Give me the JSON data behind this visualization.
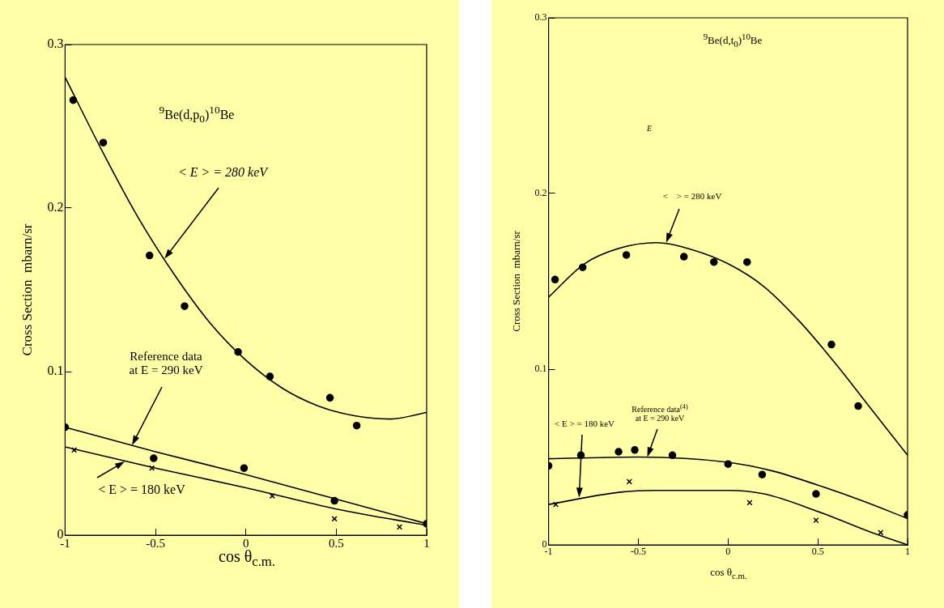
{
  "chart_data": [
    {
      "type": "scatter",
      "xlabel": "cos θ$_{c.m.}$",
      "ylabel": "Cross Section  mbarn/sr",
      "xlim": [
        -1,
        1
      ],
      "ylim": [
        0,
        0.3
      ],
      "xticks": [
        -1,
        -0.5,
        0,
        0.5,
        1
      ],
      "yticks": [
        0,
        0.1,
        0.2,
        0.3
      ],
      "grid": false,
      "legend": false,
      "annotations": [
        "$^{9}$Be(d,p$_{0}$)$^{10}$Be",
        {
          "text": "< E > = 280 keV",
          "x": -0.45,
          "y": 0.169
        },
        {
          "text": "Reference data\nat E = 290 keV",
          "x": -0.63,
          "y": 0.055
        },
        {
          "text": "< E > = 180 keV",
          "x": -0.67,
          "y": 0.045
        }
      ],
      "series": [
        {
          "type": "scatter",
          "marker": "circle",
          "color": "#000000",
          "x": [
            -0.955,
            -0.789,
            -0.533,
            -0.339,
            -0.043,
            0.133,
            0.465,
            0.613
          ],
          "values": [
            0.266,
            0.24,
            0.171,
            0.14,
            0.112,
            0.097,
            0.084,
            0.067
          ]
        },
        {
          "type": "line",
          "color": "#000000",
          "x": [
            -1,
            -0.8,
            -0.6,
            -0.4,
            -0.2,
            0,
            0.2,
            0.4,
            0.6,
            0.8,
            1
          ],
          "values": [
            0.28,
            0.236,
            0.195,
            0.16,
            0.13,
            0.107,
            0.09,
            0.079,
            0.073,
            0.071,
            0.075
          ]
        },
        {
          "type": "scatter",
          "marker": "circle",
          "color": "#000000",
          "x": [
            -1,
            -0.51,
            -0.01,
            0.49,
            1
          ],
          "values": [
            0.066,
            0.047,
            0.041,
            0.021,
            0.007
          ]
        },
        {
          "type": "line",
          "color": "#000000",
          "x": [
            -1,
            -0.5,
            0,
            0.5,
            1
          ],
          "values": [
            0.066,
            0.051,
            0.037,
            0.022,
            0.007
          ]
        },
        {
          "type": "scatter",
          "marker": "cross",
          "color": "#000000",
          "x": [
            -0.95,
            -0.52,
            0.146,
            0.49,
            0.85
          ],
          "values": [
            0.052,
            0.041,
            0.024,
            0.01,
            0.005
          ]
        },
        {
          "type": "line",
          "color": "#000000",
          "x": [
            -1,
            -0.5,
            0,
            0.5,
            1
          ],
          "values": [
            0.054,
            0.041,
            0.029,
            0.016,
            0.006
          ]
        }
      ]
    },
    {
      "type": "scatter",
      "xlabel": "cos θ$_{c.m.}$",
      "ylabel": "Cross Section  mbarn/sr",
      "xlim": [
        -1,
        1
      ],
      "ylim": [
        0,
        0.3
      ],
      "xticks": [
        -1,
        -0.5,
        0,
        0.5,
        1
      ],
      "yticks": [
        0,
        0.1,
        0.2,
        0.3
      ],
      "grid": false,
      "legend": false,
      "annotations": [
        "$^{9}$Be(d,t$_{0}$)$^{10}$Be",
        "E",
        {
          "text": "<    > = 280 keV",
          "x": -0.345,
          "y": 0.172
        },
        {
          "text": "Reference data$^{(4)}$\nat E = 290 keV",
          "x": -0.45,
          "y": 0.05
        },
        {
          "text": "< E > = 180 keV",
          "x": -0.83,
          "y": 0.027
        }
      ],
      "series": [
        {
          "type": "scatter",
          "marker": "circle",
          "color": "#000000",
          "x": [
            -0.964,
            -0.81,
            -0.567,
            -0.246,
            -0.079,
            0.106,
            0.576,
            0.725
          ],
          "values": [
            0.151,
            0.158,
            0.165,
            0.164,
            0.161,
            0.161,
            0.114,
            0.079
          ]
        },
        {
          "type": "line",
          "color": "#000000",
          "x": [
            -1,
            -0.8,
            -0.6,
            -0.4,
            -0.2,
            0,
            0.2,
            0.4,
            0.6,
            0.8,
            1
          ],
          "values": [
            0.141,
            0.16,
            0.169,
            0.172,
            0.168,
            0.16,
            0.147,
            0.127,
            0.103,
            0.077,
            0.051
          ]
        },
        {
          "type": "scatter",
          "marker": "circle",
          "color": "#000000",
          "x": [
            -1,
            -0.82,
            -0.61,
            -0.52,
            -0.31,
            0,
            0.19,
            0.49,
            1
          ],
          "values": [
            0.045,
            0.051,
            0.053,
            0.054,
            0.051,
            0.046,
            0.04,
            0.029,
            0.017
          ]
        },
        {
          "type": "line",
          "color": "#000000",
          "x": [
            -1,
            -0.5,
            0,
            0.25,
            0.5,
            0.75,
            1
          ],
          "values": [
            0.049,
            0.05,
            0.047,
            0.042,
            0.034,
            0.025,
            0.015
          ]
        },
        {
          "type": "scatter",
          "marker": "cross",
          "color": "#000000",
          "x": [
            -0.96,
            -0.55,
            0.12,
            0.49,
            0.85
          ],
          "values": [
            0.023,
            0.036,
            0.024,
            0.014,
            0.007
          ]
        },
        {
          "type": "line",
          "color": "#000000",
          "x": [
            -1,
            -0.6,
            -0.4,
            0,
            0.2,
            0.5,
            0.8,
            1
          ],
          "values": [
            0.023,
            0.03,
            0.031,
            0.031,
            0.029,
            0.019,
            0.007,
            0
          ]
        }
      ]
    }
  ]
}
